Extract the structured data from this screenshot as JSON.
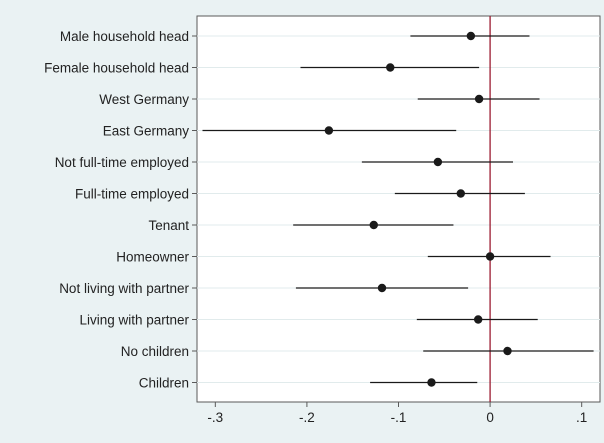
{
  "chart_data": {
    "type": "scatter",
    "subtype": "coefficient-plot",
    "orientation": "horizontal",
    "categories": [
      "Male household head",
      "Female household head",
      "West Germany",
      "East Germany",
      "Not full-time employed",
      "Full-time employed",
      "Tenant",
      "Homeowner",
      "Not living with partner",
      "Living with partner",
      "No children",
      "Children"
    ],
    "series": [
      {
        "estimate": [
          -0.021,
          -0.109,
          -0.012,
          -0.176,
          -0.057,
          -0.032,
          -0.127,
          0.0,
          -0.118,
          -0.013,
          0.019,
          -0.064
        ],
        "ci_low": [
          -0.087,
          -0.207,
          -0.079,
          -0.314,
          -0.14,
          -0.104,
          -0.215,
          -0.068,
          -0.212,
          -0.08,
          -0.073,
          -0.131
        ],
        "ci_high": [
          0.043,
          -0.012,
          0.054,
          -0.037,
          0.025,
          0.038,
          -0.04,
          0.066,
          -0.024,
          0.052,
          0.113,
          -0.014
        ]
      }
    ],
    "xlim": [
      -0.32,
      0.12
    ],
    "xticks": [
      -0.3,
      -0.2,
      -0.1,
      0,
      0.1
    ],
    "xtick_labels": [
      "-.3",
      "-.2",
      "-.1",
      "0",
      ".1"
    ],
    "reference_line": 0,
    "reference_color": "#9b1b30",
    "marker_color": "#1a1a1a",
    "grid": true,
    "xlabel": "",
    "ylabel": "",
    "title": ""
  }
}
